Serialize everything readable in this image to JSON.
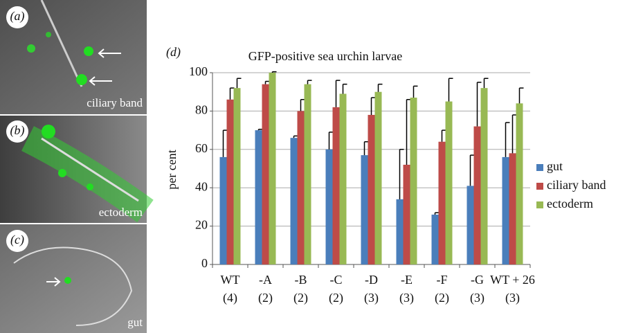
{
  "panels": [
    {
      "letter": "(a)",
      "label": "ciliary band"
    },
    {
      "letter": "(b)",
      "label": "ectoderm"
    },
    {
      "letter": "(c)",
      "label": "gut"
    }
  ],
  "chart_data": {
    "type": "bar",
    "panel_letter": "(d)",
    "title": "GFP-positive sea urchin larvae",
    "y_label": "per cent",
    "categories": [
      "WT",
      "-A",
      "-B",
      "-C",
      "-D",
      "-E",
      "-F",
      "-G",
      "WT + 26"
    ],
    "sample_sizes": [
      "(4)",
      "(2)",
      "(2)",
      "(2)",
      "(3)",
      "(3)",
      "(2)",
      "(3)",
      "(3)"
    ],
    "series": [
      {
        "name": "gut",
        "color": "#4a7ebb",
        "values": [
          56,
          70,
          66,
          60,
          57,
          34,
          26,
          41,
          56
        ],
        "errors": [
          14,
          0.5,
          1,
          9,
          7,
          26,
          1,
          16,
          18
        ]
      },
      {
        "name": "ciliary band",
        "color": "#be4b48",
        "values": [
          86,
          94,
          80,
          82,
          78,
          52,
          64,
          72,
          58
        ],
        "errors": [
          6,
          1.5,
          6,
          14,
          9,
          34,
          6,
          23,
          20
        ]
      },
      {
        "name": "ectoderm",
        "color": "#98b954",
        "values": [
          92,
          100,
          94,
          89,
          90,
          87,
          85,
          92,
          84
        ],
        "errors": [
          5,
          0.5,
          2,
          5,
          4,
          6,
          12,
          5,
          8
        ]
      }
    ],
    "ylim": [
      0,
      100
    ],
    "yticks": [
      0,
      20,
      40,
      60,
      80,
      100
    ],
    "grid": true,
    "legend": "right"
  }
}
